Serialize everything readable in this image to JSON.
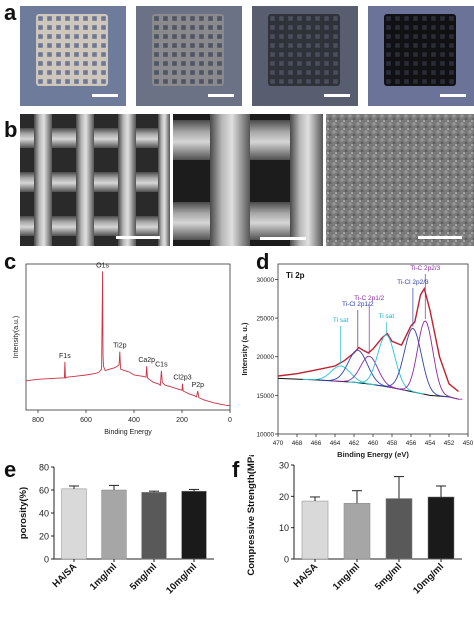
{
  "panels": {
    "a": {
      "label": "a",
      "photos": [
        {
          "bg": "#6f7b9b",
          "grid": "#cfc7bb",
          "hole": "#6e7896"
        },
        {
          "bg": "#6c7286",
          "grid": "#8a8a8c",
          "hole": "#4f5566"
        },
        {
          "bg": "#585e70",
          "grid": "#2f3238",
          "hole": "#4a4f5e"
        },
        {
          "bg": "#6b7498",
          "grid": "#111113",
          "hole": "#2a2d38"
        }
      ]
    },
    "b": {
      "label": "b"
    },
    "c": {
      "label": "c"
    },
    "d": {
      "label": "d"
    },
    "e": {
      "label": "e"
    },
    "f": {
      "label": "f"
    }
  },
  "chart_data": [
    {
      "panel": "c",
      "type": "line",
      "xlabel": "Binding Energy",
      "ylabel": "Intensity(a.u.)",
      "xlim": [
        850,
        0
      ],
      "x_ticks": [
        800,
        600,
        400,
        200,
        0
      ],
      "line_color": "#cc3344",
      "x": [
        850,
        800,
        750,
        700,
        690,
        688,
        686,
        680,
        650,
        600,
        560,
        545,
        535,
        531,
        529,
        527,
        520,
        500,
        480,
        470,
        462,
        459,
        456,
        440,
        420,
        410,
        400,
        360,
        350,
        347,
        344,
        320,
        300,
        290,
        286,
        282,
        270,
        250,
        230,
        210,
        200,
        198,
        195,
        170,
        150,
        140,
        134,
        130,
        110,
        90,
        70,
        40,
        10,
        0
      ],
      "y": [
        20,
        21,
        21.5,
        22,
        22,
        33,
        22,
        22.5,
        23,
        24,
        25,
        26,
        28,
        95,
        38,
        30,
        27,
        28,
        29,
        30,
        31,
        40,
        28,
        27,
        26,
        25,
        24,
        23,
        22.5,
        30,
        22,
        19,
        18,
        17,
        27,
        19,
        17,
        16,
        15,
        14,
        13.5,
        18,
        13,
        11,
        10,
        9,
        13,
        8.5,
        7,
        6,
        5,
        4,
        3,
        3
      ],
      "annotations": [
        {
          "text": "O1s",
          "x": 531,
          "y": 95
        },
        {
          "text": "F1s",
          "x": 688,
          "y": 33
        },
        {
          "text": "Ti2p",
          "x": 459,
          "y": 40
        },
        {
          "text": "Ca2p",
          "x": 347,
          "y": 30
        },
        {
          "text": "C1s",
          "x": 286,
          "y": 27
        },
        {
          "text": "Cl2p3",
          "x": 198,
          "y": 18
        },
        {
          "text": "P2p",
          "x": 134,
          "y": 13
        }
      ]
    },
    {
      "panel": "d",
      "type": "line",
      "title": "Ti 2p",
      "xlabel": "Binding Energy (eV)",
      "ylabel": "Intensity (a. u.)",
      "xlim": [
        470,
        450
      ],
      "ylim": [
        10000,
        32000
      ],
      "x_ticks": [
        470,
        468,
        466,
        464,
        462,
        460,
        458,
        456,
        454,
        452,
        450
      ],
      "y_ticks": [
        10000,
        15000,
        20000,
        25000,
        30000
      ],
      "series": [
        {
          "color": "#c02030",
          "role": "raw",
          "x": [
            470,
            468,
            466,
            464,
            463,
            462,
            461.5,
            461,
            460.5,
            460,
            459,
            458.5,
            458,
            457,
            456,
            455.6,
            455,
            454.6,
            454,
            453,
            452,
            451
          ],
          "y": [
            17500,
            17800,
            18300,
            18800,
            19500,
            20500,
            21200,
            20800,
            20500,
            21000,
            22500,
            23000,
            22000,
            21500,
            24000,
            24500,
            28000,
            28800,
            26000,
            20000,
            16500,
            15500
          ]
        },
        {
          "color": "#111111",
          "role": "background",
          "x": [
            470,
            466,
            462,
            460,
            458,
            456,
            454,
            452,
            451
          ],
          "y": [
            17200,
            17000,
            16700,
            16400,
            16000,
            15500,
            15000,
            14800,
            14500
          ]
        },
        {
          "color": "#22c4d8",
          "role": "peak",
          "center": 463.4,
          "height": 2000,
          "width": 1.0
        },
        {
          "color": "#3040b0",
          "role": "peak",
          "center": 461.6,
          "height": 4200,
          "width": 1.0
        },
        {
          "color": "#8a2aa0",
          "role": "peak",
          "center": 460.4,
          "height": 3600,
          "width": 0.9
        },
        {
          "color": "#22c4d8",
          "role": "peak",
          "center": 458.6,
          "height": 6700,
          "width": 0.9
        },
        {
          "color": "#3040b0",
          "role": "peak",
          "center": 455.8,
          "height": 8200,
          "width": 0.9
        },
        {
          "color": "#8a2aa0",
          "role": "peak",
          "center": 454.5,
          "height": 9500,
          "width": 0.8
        }
      ],
      "annotations": [
        {
          "text": "Ti sat",
          "color": "#22b4c8",
          "x": 463.4
        },
        {
          "text": "Ti-Cl 2p1/2",
          "color": "#3040b0",
          "x": 461.6
        },
        {
          "text": "Ti-C 2p1/2",
          "color": "#8a2aa0",
          "x": 460.4
        },
        {
          "text": "Ti sat",
          "color": "#22b4c8",
          "x": 458.6
        },
        {
          "text": "Ti-Cl 2p2/3",
          "color": "#3040b0",
          "x": 455.8
        },
        {
          "text": "Ti-C 2p2/3",
          "color": "#8a2aa0",
          "x": 454.5
        }
      ]
    },
    {
      "panel": "e",
      "type": "bar",
      "categories": [
        "HA/SA",
        "1mg/ml",
        "5mg/ml",
        "10mg/ml"
      ],
      "values": [
        61,
        60,
        58,
        59
      ],
      "errors": [
        2.5,
        4,
        1,
        1.5
      ],
      "colors": [
        "#d9d9d9",
        "#a6a6a6",
        "#595959",
        "#1a1a1a"
      ],
      "ylabel": "porosity(%)",
      "ylim": [
        0,
        80
      ],
      "y_ticks": [
        0,
        20,
        40,
        60,
        80
      ]
    },
    {
      "panel": "f",
      "type": "bar",
      "categories": [
        "HA/SA",
        "1mg/ml",
        "5mg/ml",
        "10mg/ml"
      ],
      "values": [
        18.5,
        17.8,
        19.3,
        19.8
      ],
      "errors": [
        1.3,
        4,
        7,
        3.5
      ],
      "colors": [
        "#d9d9d9",
        "#a6a6a6",
        "#595959",
        "#1a1a1a"
      ],
      "ylabel": "Compressive Strength(MPa)",
      "ylim": [
        0,
        30
      ],
      "y_ticks": [
        0,
        10,
        20,
        30
      ]
    }
  ]
}
